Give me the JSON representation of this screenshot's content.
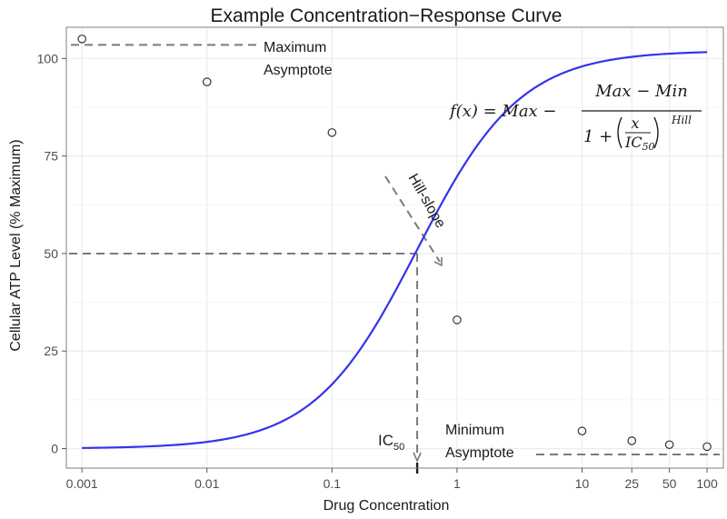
{
  "chart_data": {
    "type": "line",
    "title": "Example Concentration−Response Curve",
    "xlabel": "Drug Concentration",
    "ylabel": "Cellular ATP Level (% Maximum)",
    "x_scale": "log10",
    "xlim": [
      0.00075,
      135
    ],
    "ylim": [
      -5,
      108
    ],
    "grid": true,
    "x_ticks": [
      {
        "value": 0.001,
        "label": "0.001"
      },
      {
        "value": 0.01,
        "label": "0.01"
      },
      {
        "value": 0.1,
        "label": "0.1"
      },
      {
        "value": 1,
        "label": "1"
      },
      {
        "value": 10,
        "label": "10"
      },
      {
        "value": 25,
        "label": "25"
      },
      {
        "value": 50,
        "label": "50"
      },
      {
        "value": 100,
        "label": "100"
      }
    ],
    "y_ticks": [
      {
        "value": 0,
        "label": "0"
      },
      {
        "value": 25,
        "label": "25"
      },
      {
        "value": 50,
        "label": "50"
      },
      {
        "value": 75,
        "label": "75"
      },
      {
        "value": 100,
        "label": "100"
      }
    ],
    "points": [
      {
        "x": 0.001,
        "y": 105
      },
      {
        "x": 0.01,
        "y": 94
      },
      {
        "x": 0.1,
        "y": 81
      },
      {
        "x": 1,
        "y": 33
      },
      {
        "x": 10,
        "y": 4.5
      },
      {
        "x": 25,
        "y": 2
      },
      {
        "x": 50,
        "y": 1
      },
      {
        "x": 100,
        "y": 0.5
      }
    ],
    "fit": {
      "model": "four-parameter logistic",
      "max": 102,
      "min": 0,
      "ic50": 0.48,
      "hill": 1.05,
      "color": "#3333ee"
    },
    "annotations": {
      "max_label_line1": "Maximum",
      "max_label_line2": "Asymptote",
      "min_label_line1": "Minimum",
      "min_label_line2": "Asymptote",
      "hill_label": "Hill-slope",
      "ic50_main": "IC",
      "ic50_sub": "50",
      "formula_lhs": "f(x) = Max −",
      "formula_num": "Max − Min",
      "formula_den_one": "1 +",
      "formula_frac_num": "x",
      "formula_frac_den_main": "IC",
      "formula_frac_den_sub": "50",
      "formula_exponent": "Hill"
    },
    "dashed_color": "#7a7a7a",
    "panel_border_color": "#7f7f7f",
    "grid_color": "#ebebeb"
  }
}
